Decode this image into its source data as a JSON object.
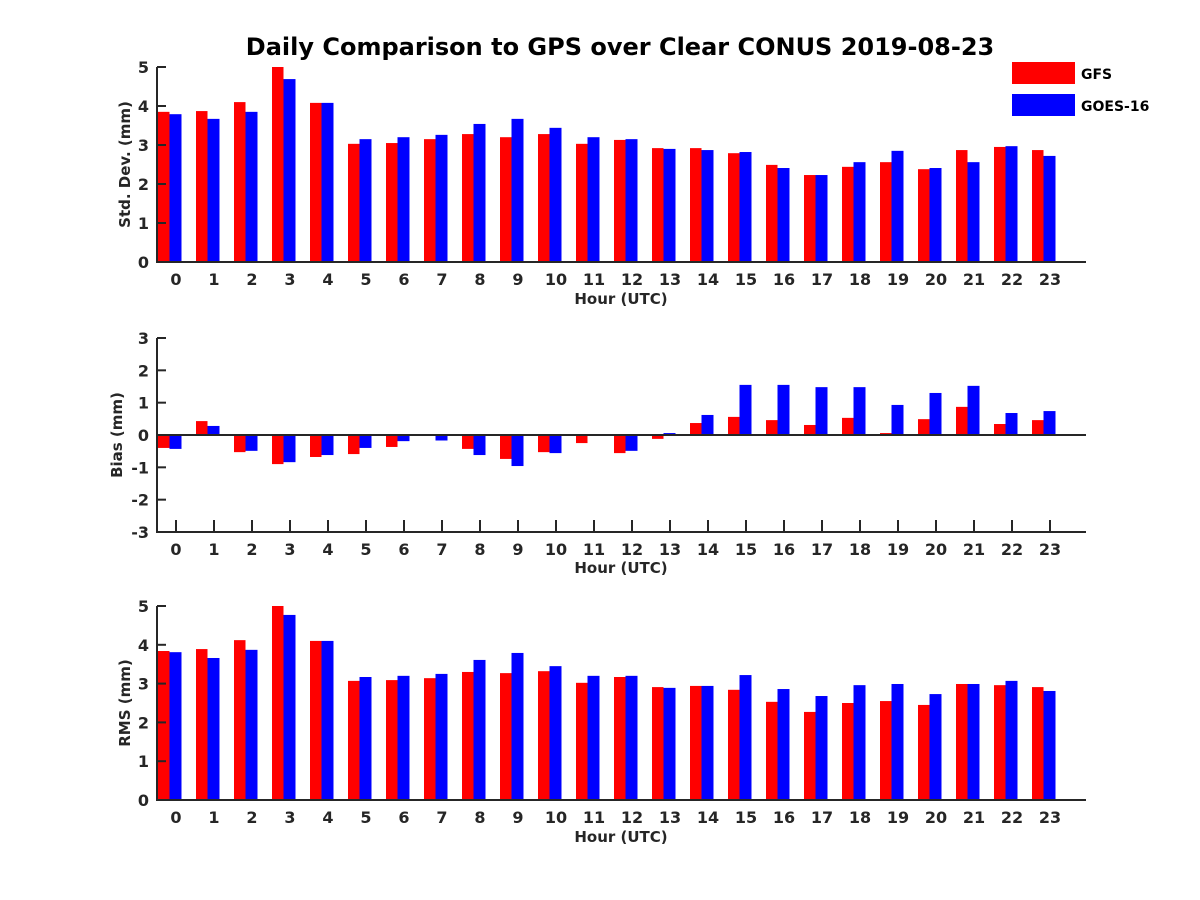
{
  "chart_data": {
    "title": "Daily Comparison to GPS over Clear CONUS 2019-08-23",
    "legend": {
      "placement": "top-right",
      "entries": [
        {
          "name": "GFS",
          "color": "#ff0000"
        },
        {
          "name": "GOES-16",
          "color": "#0000ff"
        }
      ]
    },
    "panels": [
      {
        "type": "bar",
        "xlabel": "Hour (UTC)",
        "ylabel": "Std. Dev. (mm)",
        "ylim": [
          0,
          5
        ],
        "yticks": [
          "0",
          "1",
          "2",
          "3",
          "4",
          "5"
        ],
        "categories": [
          "0",
          "1",
          "2",
          "3",
          "4",
          "5",
          "6",
          "7",
          "8",
          "9",
          "10",
          "11",
          "12",
          "13",
          "14",
          "15",
          "16",
          "17",
          "18",
          "19",
          "20",
          "21",
          "22",
          "23"
        ],
        "series": [
          {
            "name": "GFS",
            "color": "#ff0000",
            "values": [
              3.85,
              3.87,
              4.1,
              5.0,
              4.08,
              3.03,
              3.05,
              3.15,
              3.28,
              3.2,
              3.28,
              3.03,
              3.13,
              2.92,
              2.92,
              2.79,
              2.49,
              2.23,
              2.44,
              2.56,
              2.38,
              2.87,
              2.95,
              2.87
            ]
          },
          {
            "name": "GOES-16",
            "color": "#0000ff",
            "values": [
              3.79,
              3.67,
              3.85,
              4.69,
              4.08,
              3.15,
              3.2,
              3.26,
              3.54,
              3.67,
              3.44,
              3.2,
              3.15,
              2.9,
              2.87,
              2.82,
              2.41,
              2.23,
              2.56,
              2.85,
              2.41,
              2.56,
              2.97,
              2.72
            ]
          }
        ]
      },
      {
        "type": "bar",
        "xlabel": "Hour (UTC)",
        "ylabel": "Bias (mm)",
        "ylim": [
          -3,
          3
        ],
        "yticks": [
          "-3",
          "-2",
          "-1",
          "0",
          "1",
          "2",
          "3"
        ],
        "categories": [
          "0",
          "1",
          "2",
          "3",
          "4",
          "5",
          "6",
          "7",
          "8",
          "9",
          "10",
          "11",
          "12",
          "13",
          "14",
          "15",
          "16",
          "17",
          "18",
          "19",
          "20",
          "21",
          "22",
          "23"
        ],
        "series": [
          {
            "name": "GFS",
            "color": "#ff0000",
            "values": [
              -0.4,
              0.43,
              -0.53,
              -0.9,
              -0.68,
              -0.59,
              -0.37,
              -0.03,
              -0.43,
              -0.74,
              -0.53,
              -0.25,
              -0.56,
              -0.12,
              0.37,
              0.56,
              0.46,
              0.31,
              0.53,
              0.06,
              0.49,
              0.87,
              0.34,
              0.46
            ]
          },
          {
            "name": "GOES-16",
            "color": "#0000ff",
            "values": [
              -0.43,
              0.28,
              -0.49,
              -0.84,
              -0.62,
              -0.4,
              -0.19,
              -0.17,
              -0.62,
              -0.96,
              -0.56,
              0.0,
              -0.49,
              0.06,
              0.62,
              1.55,
              1.55,
              1.48,
              1.48,
              0.93,
              1.3,
              1.52,
              0.68,
              0.74
            ]
          }
        ]
      },
      {
        "type": "bar",
        "xlabel": "Hour (UTC)",
        "ylabel": "RMS (mm)",
        "ylim": [
          0,
          5
        ],
        "yticks": [
          "0",
          "1",
          "2",
          "3",
          "4",
          "5"
        ],
        "categories": [
          "0",
          "1",
          "2",
          "3",
          "4",
          "5",
          "6",
          "7",
          "8",
          "9",
          "10",
          "11",
          "12",
          "13",
          "14",
          "15",
          "16",
          "17",
          "18",
          "19",
          "20",
          "21",
          "22",
          "23"
        ],
        "series": [
          {
            "name": "GFS",
            "color": "#ff0000",
            "values": [
              3.84,
              3.89,
              4.12,
              5.0,
              4.1,
              3.07,
              3.09,
              3.14,
              3.3,
              3.27,
              3.32,
              3.02,
              3.17,
              2.91,
              2.94,
              2.84,
              2.53,
              2.27,
              2.5,
              2.55,
              2.45,
              2.99,
              2.96,
              2.91
            ]
          },
          {
            "name": "GOES-16",
            "color": "#0000ff",
            "values": [
              3.81,
              3.66,
              3.87,
              4.77,
              4.1,
              3.17,
              3.2,
              3.25,
              3.61,
              3.79,
              3.45,
              3.2,
              3.2,
              2.89,
              2.94,
              3.22,
              2.86,
              2.68,
              2.96,
              2.99,
              2.73,
              2.99,
              3.07,
              2.81
            ]
          }
        ]
      }
    ]
  }
}
